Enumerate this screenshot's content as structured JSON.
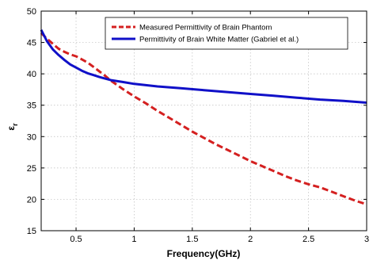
{
  "chart_data": {
    "type": "line",
    "title": "",
    "xlabel": "Frequency(GHz)",
    "ylabel_main": "ε",
    "ylabel_sub": "r",
    "xlim": [
      0.2,
      3
    ],
    "ylim": [
      15,
      50
    ],
    "x_ticks": [
      0.5,
      1,
      1.5,
      2,
      2.5,
      3
    ],
    "x_tick_labels": [
      "0.5",
      "1",
      "1.5",
      "2",
      "2.5",
      "3"
    ],
    "y_ticks": [
      15,
      20,
      25,
      30,
      35,
      40,
      45,
      50
    ],
    "y_tick_labels": [
      "15",
      "20",
      "25",
      "30",
      "35",
      "40",
      "45",
      "50"
    ],
    "grid": true,
    "legend_position": "top-right",
    "series": [
      {
        "name": "Measured Permittivity of Brain Phantom",
        "color": "#d42020",
        "style": "dashed",
        "x": [
          0.2,
          0.25,
          0.3,
          0.35,
          0.4,
          0.45,
          0.5,
          0.55,
          0.6,
          0.65,
          0.7,
          0.75,
          0.8,
          0.9,
          1.0,
          1.1,
          1.2,
          1.3,
          1.4,
          1.5,
          1.6,
          1.7,
          1.8,
          1.9,
          2.0,
          2.1,
          2.2,
          2.3,
          2.4,
          2.5,
          2.6,
          2.7,
          2.8,
          2.9,
          3.0
        ],
        "values": [
          46.5,
          45.6,
          44.8,
          44.0,
          43.5,
          43.1,
          42.8,
          42.3,
          41.8,
          41.1,
          40.4,
          39.7,
          38.9,
          37.6,
          36.4,
          35.3,
          34.1,
          33.0,
          31.9,
          30.8,
          29.8,
          28.8,
          27.9,
          27.0,
          26.1,
          25.3,
          24.5,
          23.7,
          23.0,
          22.4,
          21.9,
          21.2,
          20.5,
          19.8,
          19.2
        ]
      },
      {
        "name": "Permittivity of Brain White Matter (Gabriel et al.)",
        "color": "#1010c8",
        "style": "solid",
        "x": [
          0.2,
          0.25,
          0.3,
          0.35,
          0.4,
          0.45,
          0.5,
          0.55,
          0.6,
          0.65,
          0.7,
          0.8,
          0.9,
          1.0,
          1.2,
          1.4,
          1.6,
          1.8,
          2.0,
          2.2,
          2.4,
          2.6,
          2.8,
          3.0
        ],
        "values": [
          47.0,
          45.2,
          43.9,
          43.0,
          42.2,
          41.5,
          41.0,
          40.5,
          40.1,
          39.8,
          39.5,
          39.0,
          38.7,
          38.4,
          38.0,
          37.7,
          37.4,
          37.1,
          36.8,
          36.5,
          36.2,
          35.9,
          35.7,
          35.4
        ]
      }
    ]
  }
}
